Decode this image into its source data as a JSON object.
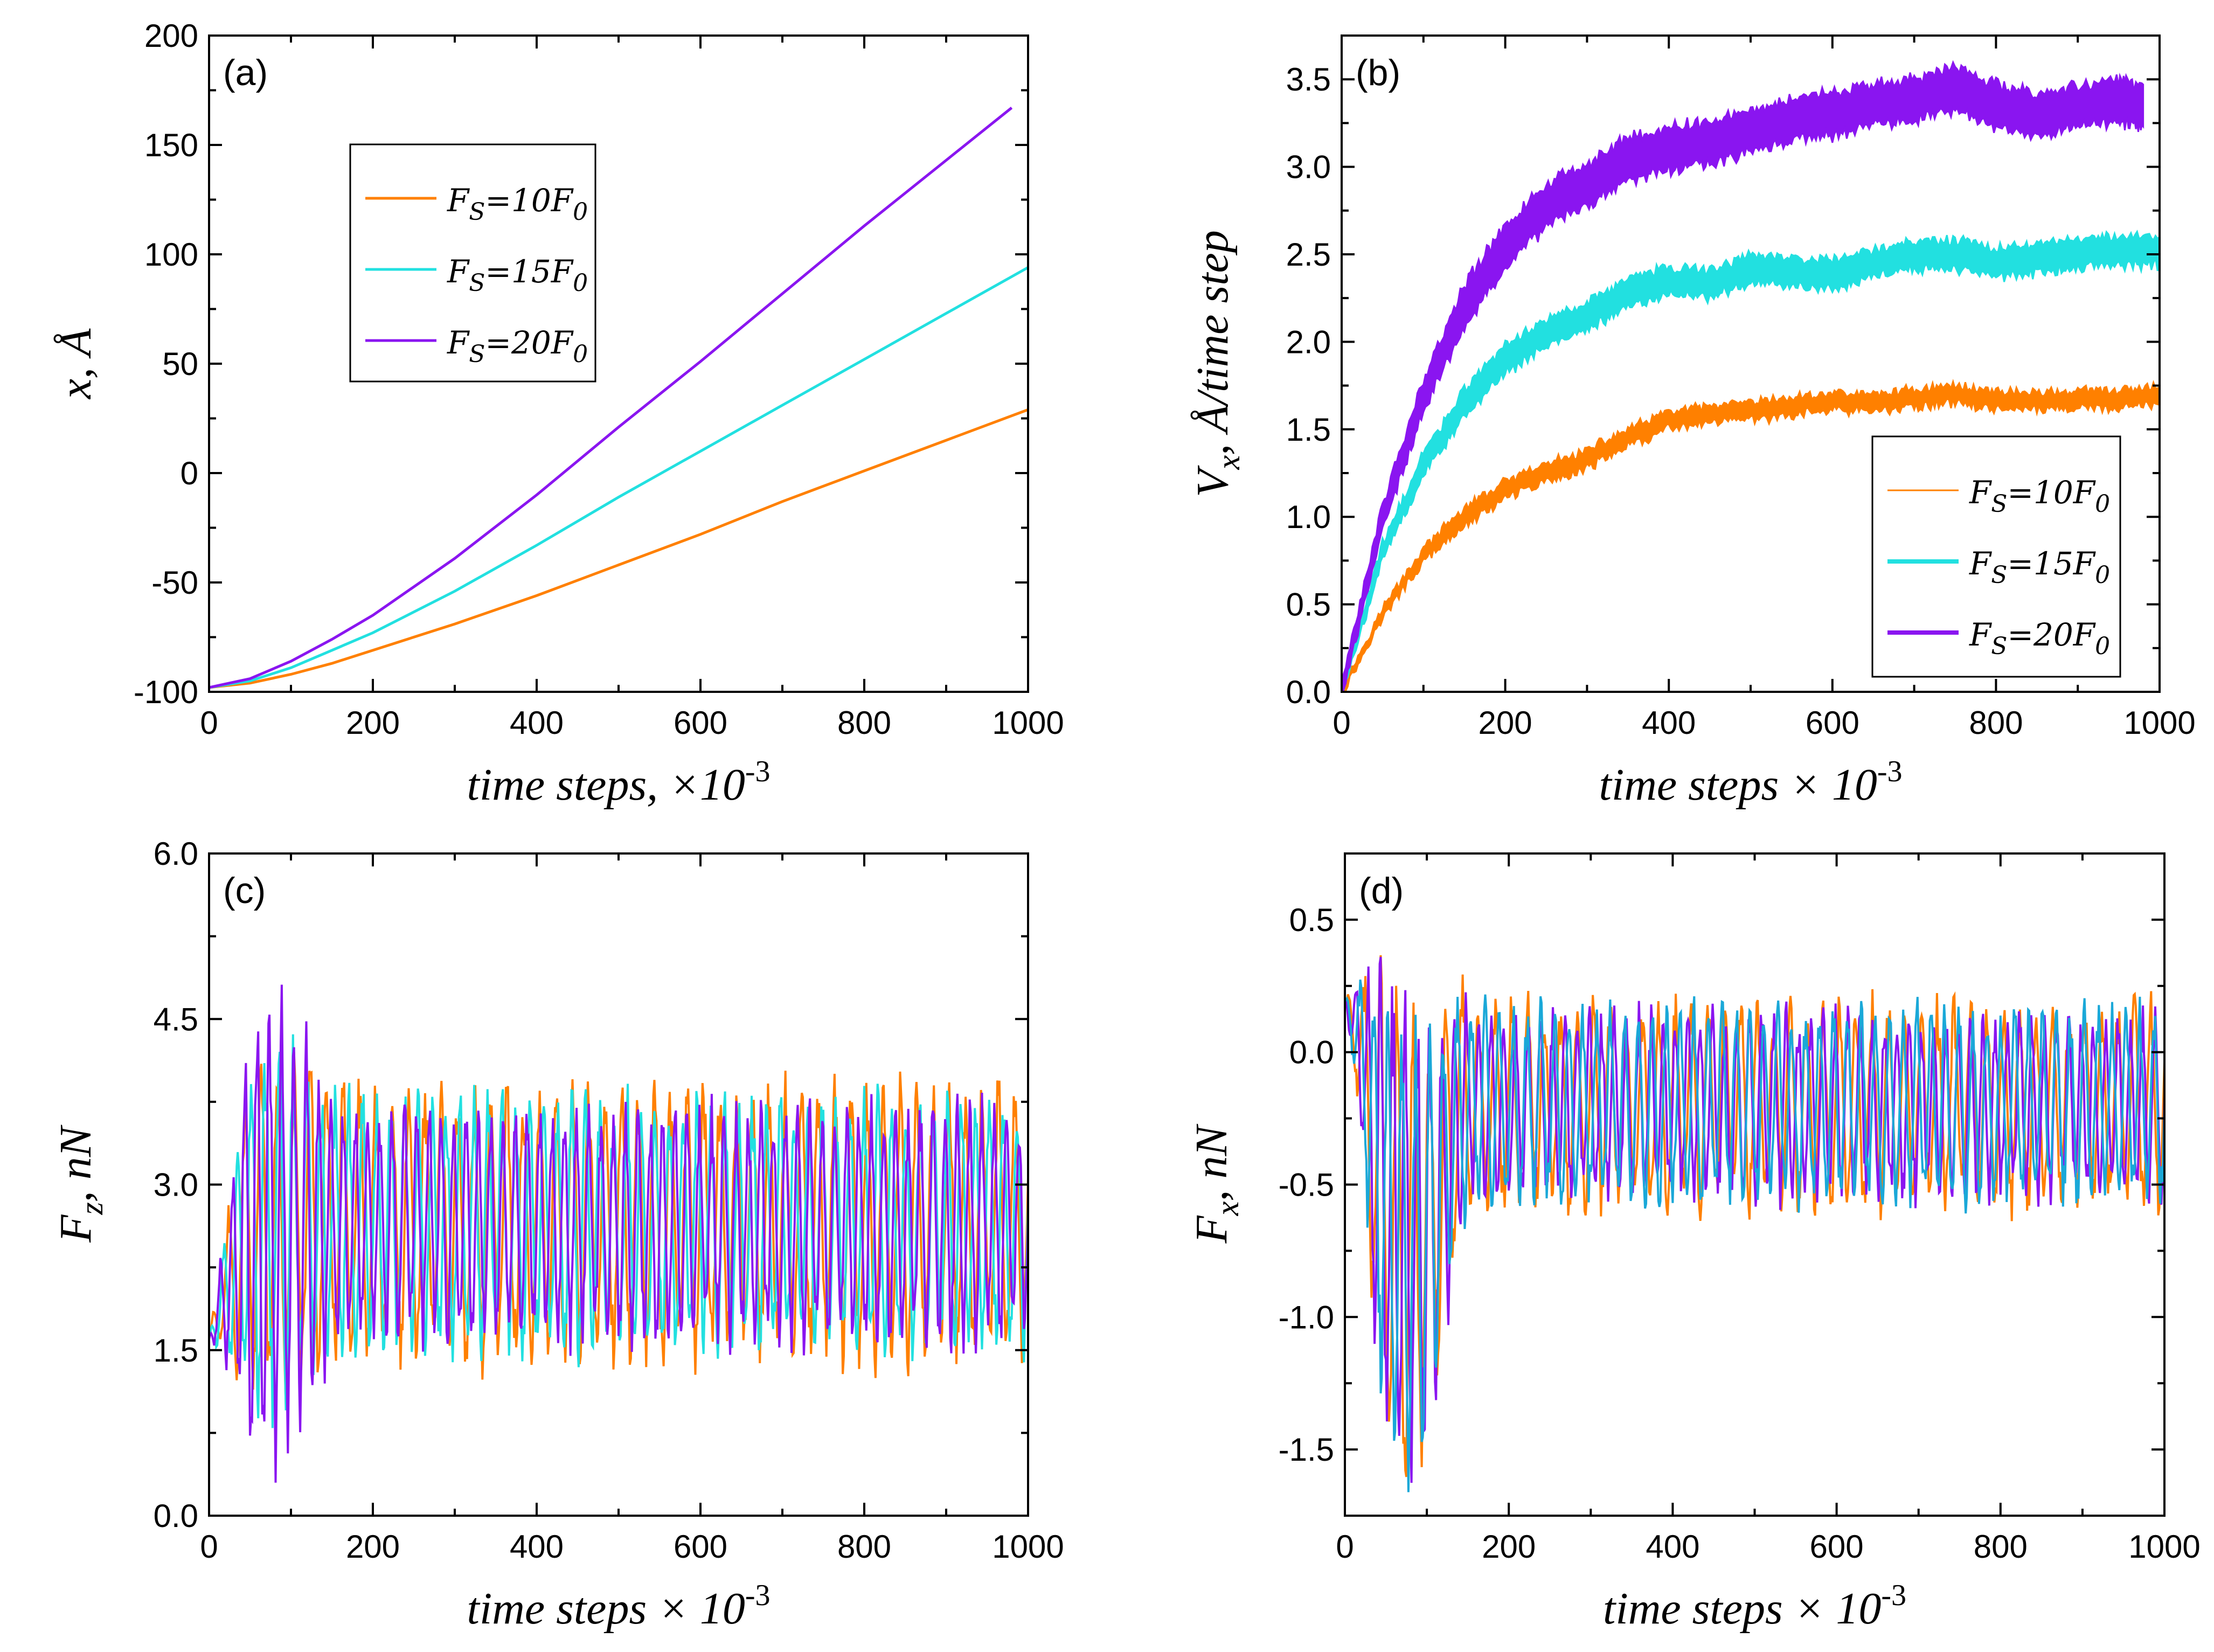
{
  "colors": {
    "s10": "#ff8000",
    "s15": "#22e0e0",
    "s20": "#8a15f0",
    "s15_fx": "#1aa8d8"
  },
  "chart_data": [
    {
      "id": "a",
      "type": "line",
      "panel_label": "(a)",
      "ylabel": "x, Å",
      "xlabel": "time steps, ×10",
      "xlabel_exp": "-3",
      "xlim": [
        0,
        1000
      ],
      "ylim": [
        -100,
        200
      ],
      "xticks": [
        0,
        200,
        400,
        600,
        800,
        1000
      ],
      "xtick_labels": [
        "0",
        "200",
        "400",
        "600",
        "800",
        "1000"
      ],
      "yticks": [
        -100,
        -50,
        0,
        50,
        100,
        150,
        200
      ],
      "ytick_labels": [
        "-100",
        "-50",
        "0",
        "50",
        "100",
        "150",
        "200"
      ],
      "legend": {
        "position": "upper-left-center",
        "entries": [
          {
            "key": "s10",
            "pre": "F",
            "sub": "S",
            "mid": "=10F",
            "sub2": "0"
          },
          {
            "key": "s15",
            "pre": "F",
            "sub": "S",
            "mid": "=15F",
            "sub2": "0"
          },
          {
            "key": "s20",
            "pre": "F",
            "sub": "S",
            "mid": "=20F",
            "sub2": "0"
          }
        ]
      },
      "series": [
        {
          "name": "Fs=10F0",
          "color_key": "s10",
          "x": [
            0,
            50,
            100,
            150,
            200,
            300,
            400,
            500,
            600,
            700,
            800,
            900,
            1000
          ],
          "y": [
            -98,
            -96,
            -92,
            -87,
            -81,
            -69,
            -56,
            -42,
            -28,
            -13,
            1,
            15,
            29
          ]
        },
        {
          "name": "Fs=15F0",
          "color_key": "s15",
          "x": [
            0,
            50,
            100,
            150,
            200,
            300,
            400,
            500,
            600,
            700,
            800,
            900,
            1000
          ],
          "y": [
            -98,
            -95,
            -89,
            -81,
            -73,
            -54,
            -33,
            -11,
            10,
            31,
            52,
            73,
            94
          ]
        },
        {
          "name": "Fs=20F0",
          "color_key": "s20",
          "x": [
            0,
            50,
            100,
            150,
            200,
            300,
            400,
            500,
            600,
            700,
            800,
            900,
            980
          ],
          "y": [
            -98,
            -94,
            -86,
            -76,
            -65,
            -39,
            -10,
            21,
            51,
            82,
            113,
            143,
            167
          ]
        }
      ]
    },
    {
      "id": "b",
      "type": "line",
      "panel_label": "(b)",
      "ylabel": "V",
      "ylabel_sub": "x",
      "ylabel_rest": ", Å/time step",
      "xlabel": "time steps × 10",
      "xlabel_exp": "-3",
      "xlim": [
        0,
        1000
      ],
      "ylim": [
        0,
        3.75
      ],
      "xticks": [
        0,
        200,
        400,
        600,
        800,
        1000
      ],
      "xtick_labels": [
        "0",
        "200",
        "400",
        "600",
        "800",
        "1000"
      ],
      "yticks": [
        0,
        0.5,
        1.0,
        1.5,
        2.0,
        2.5,
        3.0,
        3.5
      ],
      "ytick_labels": [
        "0.0",
        "0.5",
        "1.0",
        "1.5",
        "2.0",
        "2.5",
        "3.0",
        "3.5"
      ],
      "legend": {
        "position": "lower-right",
        "entries": [
          {
            "key": "s10",
            "pre": "F",
            "sub": "S",
            "mid": "=10F",
            "sub2": "0"
          },
          {
            "key": "s15",
            "pre": "F",
            "sub": "S",
            "mid": "=15F",
            "sub2": "0"
          },
          {
            "key": "s20",
            "pre": "F",
            "sub": "S",
            "mid": "=20F",
            "sub2": "0"
          }
        ]
      },
      "series": [
        {
          "name": "Fs=10F0",
          "color_key": "s10",
          "band": 0.1,
          "x": [
            0,
            50,
            100,
            150,
            200,
            250,
            300,
            350,
            400,
            450,
            500,
            550,
            600,
            650,
            700,
            750,
            800,
            850,
            900,
            950,
            1000
          ],
          "y": [
            0,
            0.45,
            0.78,
            1.0,
            1.15,
            1.25,
            1.33,
            1.45,
            1.55,
            1.58,
            1.6,
            1.63,
            1.66,
            1.65,
            1.68,
            1.7,
            1.67,
            1.66,
            1.67,
            1.67,
            1.69
          ]
        },
        {
          "name": "Fs=15F0",
          "color_key": "s15",
          "band": 0.16,
          "x": [
            0,
            50,
            100,
            150,
            200,
            250,
            300,
            350,
            400,
            450,
            500,
            550,
            600,
            650,
            700,
            750,
            800,
            850,
            900,
            950,
            1000
          ],
          "y": [
            0,
            0.8,
            1.3,
            1.65,
            1.9,
            2.05,
            2.15,
            2.28,
            2.35,
            2.33,
            2.42,
            2.4,
            2.38,
            2.45,
            2.5,
            2.5,
            2.45,
            2.48,
            2.5,
            2.52,
            2.52
          ]
        },
        {
          "name": "Fs=20F0",
          "color_key": "s20",
          "band": 0.24,
          "x": [
            0,
            50,
            100,
            150,
            200,
            250,
            300,
            350,
            400,
            450,
            500,
            550,
            600,
            650,
            700,
            750,
            800,
            850,
            900,
            950,
            980
          ],
          "y": [
            0,
            1.0,
            1.7,
            2.2,
            2.55,
            2.78,
            2.9,
            3.05,
            3.1,
            3.15,
            3.2,
            3.27,
            3.3,
            3.35,
            3.38,
            3.45,
            3.35,
            3.3,
            3.35,
            3.38,
            3.35
          ]
        }
      ]
    },
    {
      "id": "c",
      "type": "line",
      "panel_label": "(c)",
      "ylabel": "F",
      "ylabel_sub": "z",
      "ylabel_rest": ", nN",
      "xlabel": "time steps × 10",
      "xlabel_exp": "-3",
      "xlim": [
        0,
        1000
      ],
      "ylim": [
        0,
        6
      ],
      "xticks": [
        0,
        200,
        400,
        600,
        800,
        1000
      ],
      "xtick_labels": [
        "0",
        "200",
        "400",
        "600",
        "800",
        "1000"
      ],
      "yticks": [
        0,
        1.5,
        3.0,
        4.5,
        6.0
      ],
      "ytick_labels": [
        "0.0",
        "1.5",
        "3.0",
        "4.5",
        "6.0"
      ],
      "osc": {
        "mean_start": 1.6,
        "mean": 2.65,
        "rise_to": 50,
        "n_points": 800
      },
      "series": [
        {
          "name": "Fs=10F0",
          "color_key": "s10",
          "period": 20,
          "amp": 1.35,
          "amp_peak": 1.7,
          "phase": 0.4
        },
        {
          "name": "Fs=15F0",
          "color_key": "s15",
          "period": 17,
          "amp": 1.25,
          "amp_peak": 1.8,
          "phase": 1.3
        },
        {
          "name": "Fs=20F0",
          "color_key": "s20",
          "period": 15,
          "amp": 1.15,
          "amp_peak": 2.3,
          "phase": 2.1
        }
      ]
    },
    {
      "id": "d",
      "type": "line",
      "panel_label": "(d)",
      "ylabel": "F",
      "ylabel_sub": "x",
      "ylabel_rest": ", nN",
      "xlabel": "time steps × 10",
      "xlabel_exp": "-3",
      "xlim": [
        0,
        1000
      ],
      "ylim": [
        -1.75,
        0.75
      ],
      "xticks": [
        0,
        200,
        400,
        600,
        800,
        1000
      ],
      "xtick_labels": [
        "0",
        "200",
        "400",
        "600",
        "800",
        "1000"
      ],
      "yticks": [
        -1.5,
        -1.0,
        -0.5,
        0.0,
        0.5
      ],
      "ytick_labels": [
        "-1.5",
        "-1.0",
        "-0.5",
        "0.0",
        "0.5"
      ],
      "osc": {
        "mean_start": 0.2,
        "mean": -0.2,
        "rise_to": 40,
        "n_points": 800
      },
      "series": [
        {
          "name": "Fs=10F0",
          "color_key": "s10",
          "period": 20,
          "amp": 0.42,
          "amp_peak": 0.95,
          "phase": 0.5
        },
        {
          "name": "Fs=20F0",
          "color_key": "s20",
          "period": 15,
          "amp": 0.38,
          "amp_peak": 1.0,
          "phase": 2.2
        },
        {
          "name": "Fs=15F0",
          "color_key": "s15_fx",
          "period": 17,
          "amp": 0.4,
          "amp_peak": 0.9,
          "phase": 1.1
        }
      ]
    }
  ]
}
